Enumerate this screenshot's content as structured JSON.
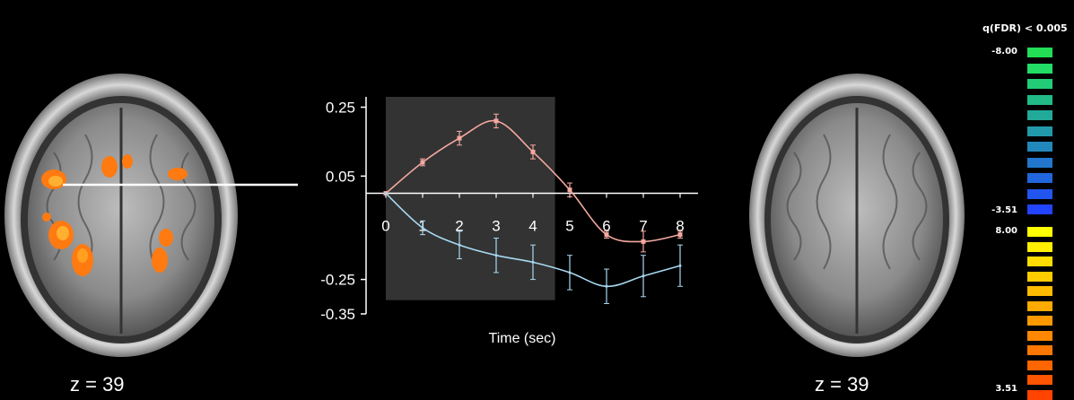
{
  "left_panel": {
    "z_label": "z = 39"
  },
  "right_panel": {
    "z_label": "z = 39"
  },
  "colorbar": {
    "title": "q(FDR) < 0.005",
    "neg_top_label": "-8.00",
    "neg_bottom_label": "-3.51",
    "pos_top_label": "8.00",
    "pos_bottom_label": "3.51",
    "neg_colors": [
      "#22dd55",
      "#22dd66",
      "#22cc77",
      "#22bb88",
      "#22aa99",
      "#2299aa",
      "#2288bb",
      "#2277cc",
      "#2266dd",
      "#2255ee",
      "#2244ff"
    ],
    "pos_colors": [
      "#ffff00",
      "#ffee00",
      "#ffdd00",
      "#ffcc00",
      "#ffbb00",
      "#ffaa00",
      "#ff9900",
      "#ff8800",
      "#ff7700",
      "#ff6600",
      "#ff5500",
      "#ff4400"
    ]
  },
  "chart_data": {
    "type": "line",
    "xlabel": "Time (sec)",
    "ylabel": "",
    "x": [
      0,
      1,
      2,
      3,
      4,
      5,
      6,
      7,
      8
    ],
    "x_tick_labels": [
      "0",
      "1",
      "2",
      "3",
      "4",
      "5",
      "6",
      "7",
      "8"
    ],
    "y_tick_values": [
      0.25,
      0.05,
      -0.25,
      -0.35
    ],
    "y_tick_labels": [
      "0.25",
      "0.05",
      "-0.25",
      "-0.35"
    ],
    "ylim": [
      -0.35,
      0.28
    ],
    "shaded_region": [
      0,
      4.6
    ],
    "series": [
      {
        "color": "#f4a8a0",
        "values": [
          0.0,
          0.09,
          0.16,
          0.21,
          0.12,
          0.01,
          -0.12,
          -0.14,
          -0.12
        ],
        "errors": [
          0.0,
          0.01,
          0.02,
          0.02,
          0.02,
          0.02,
          0.01,
          0.03,
          0.01
        ]
      },
      {
        "color": "#a8d8f0",
        "values": [
          0.0,
          -0.1,
          -0.15,
          -0.18,
          -0.2,
          -0.23,
          -0.27,
          -0.24,
          -0.21
        ],
        "errors": [
          0.0,
          0.02,
          0.04,
          0.05,
          0.05,
          0.05,
          0.05,
          0.06,
          0.06
        ]
      }
    ]
  }
}
